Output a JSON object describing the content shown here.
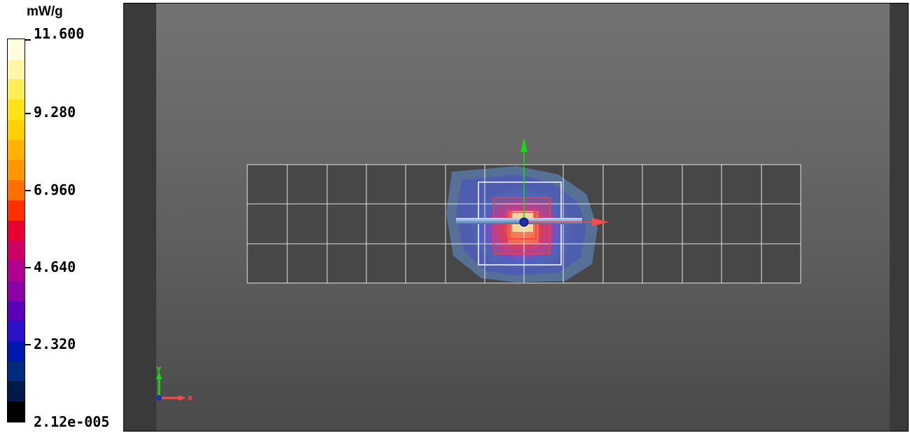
{
  "legend": {
    "unit": "mW/g",
    "ticks": [
      {
        "label": "11.600",
        "value": 11.6
      },
      {
        "label": "9.280",
        "value": 9.28
      },
      {
        "label": "6.960",
        "value": 6.96
      },
      {
        "label": "4.640",
        "value": 4.64
      },
      {
        "label": "2.320",
        "value": 2.32
      },
      {
        "label": "2.12e-005",
        "value": 2.12e-05
      }
    ],
    "colors": [
      "#fffde0",
      "#fff6a8",
      "#ffee5a",
      "#ffe31a",
      "#ffd000",
      "#ffb300",
      "#ff9800",
      "#ff7000",
      "#ff2e00",
      "#e8002e",
      "#cc0066",
      "#b00090",
      "#8c00a8",
      "#5a00b8",
      "#2a10c8",
      "#0018b0",
      "#002a80",
      "#001a48",
      "#000000"
    ]
  },
  "viewport": {
    "grid": {
      "columns": 14,
      "rows": 3
    },
    "axes": {
      "x": "x",
      "y": "y"
    }
  }
}
